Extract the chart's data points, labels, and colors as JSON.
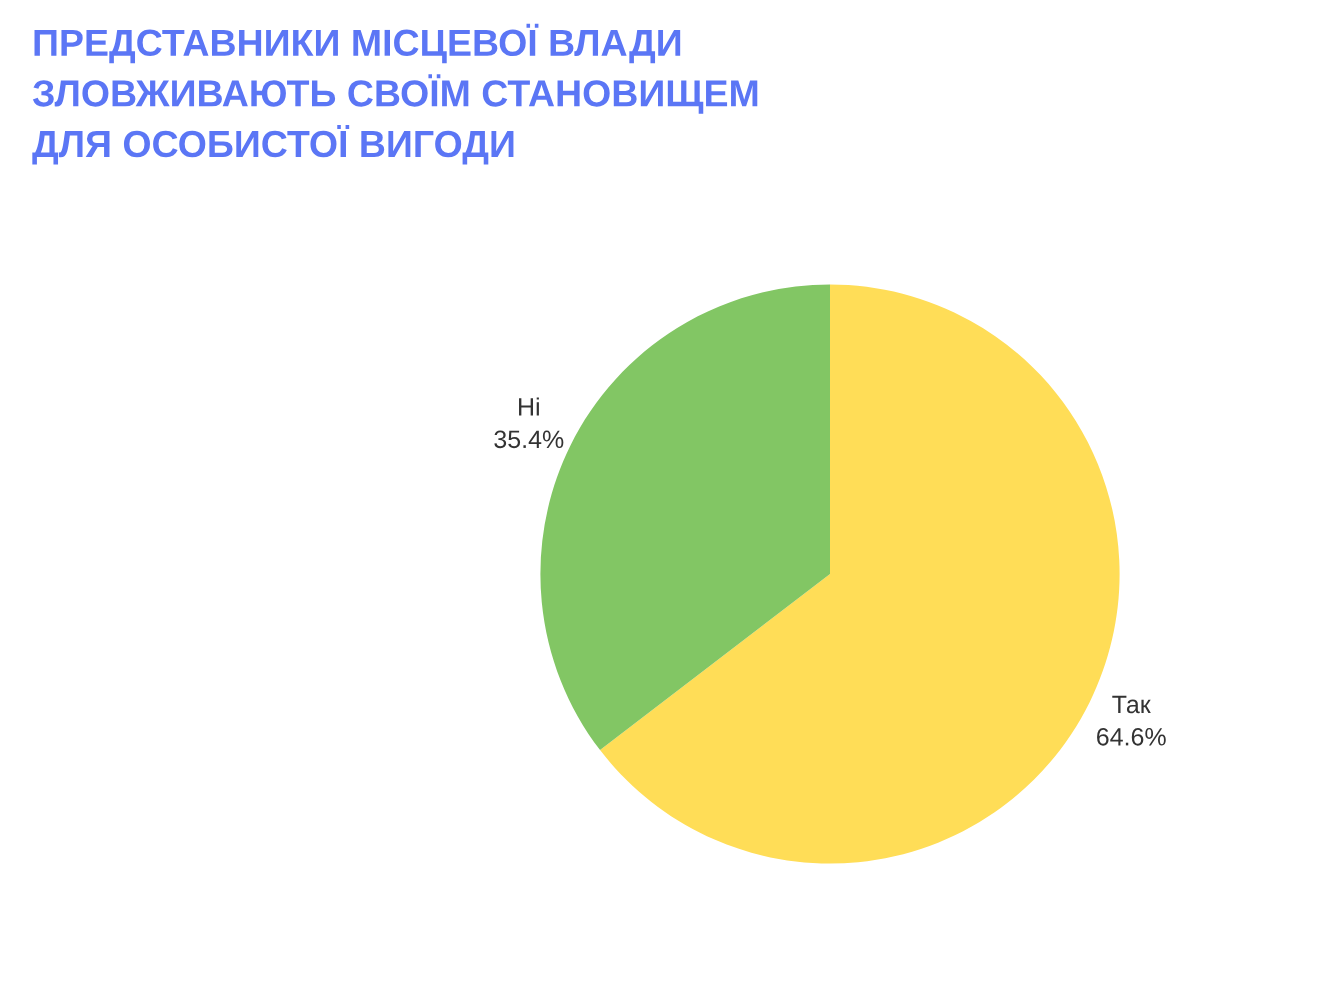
{
  "chart_data": {
    "type": "pie",
    "title": "ПРЕДСТАВНИКИ МІСЦЕВОЇ ВЛАДИ\nЗЛОВЖИВАЮТЬ СВОЇМ СТАНОВИЩЕМ\nДЛЯ ОСОБИСТОЇ ВИГОДИ",
    "categories": [
      "Так",
      "Ні"
    ],
    "values": [
      64.6,
      35.4
    ],
    "value_labels": [
      "64.6%",
      "35.4%"
    ],
    "colors": [
      "#ffdd57",
      "#82c664"
    ],
    "legend": false
  }
}
